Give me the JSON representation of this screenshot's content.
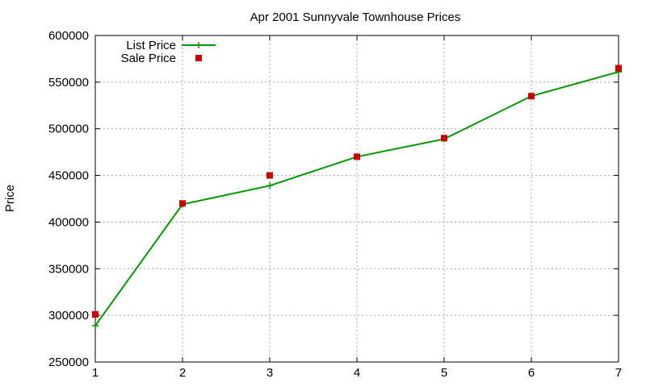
{
  "chart_data": {
    "type": "line",
    "title": "Apr 2001 Sunnyvale Townhouse Prices",
    "xlabel": "",
    "ylabel": "Price",
    "x": [
      1,
      2,
      3,
      4,
      5,
      6,
      7
    ],
    "xlim": [
      1,
      7
    ],
    "ylim": [
      250000,
      600000
    ],
    "xticks": [
      "1",
      "2",
      "3",
      "4",
      "5",
      "6",
      "7"
    ],
    "yticks": [
      "250000",
      "300000",
      "350000",
      "400000",
      "450000",
      "500000",
      "550000",
      "600000"
    ],
    "grid": true,
    "legend_position": "top-left",
    "series": [
      {
        "name": "List Price",
        "style": "line+plus",
        "color": "#009900",
        "values": [
          289000,
          419000,
          439000,
          470000,
          489000,
          535000,
          561000
        ]
      },
      {
        "name": "Sale Price",
        "style": "square",
        "color": "#cc0000",
        "values": [
          301000,
          420000,
          450000,
          470000,
          490000,
          535000,
          565000
        ]
      }
    ]
  }
}
